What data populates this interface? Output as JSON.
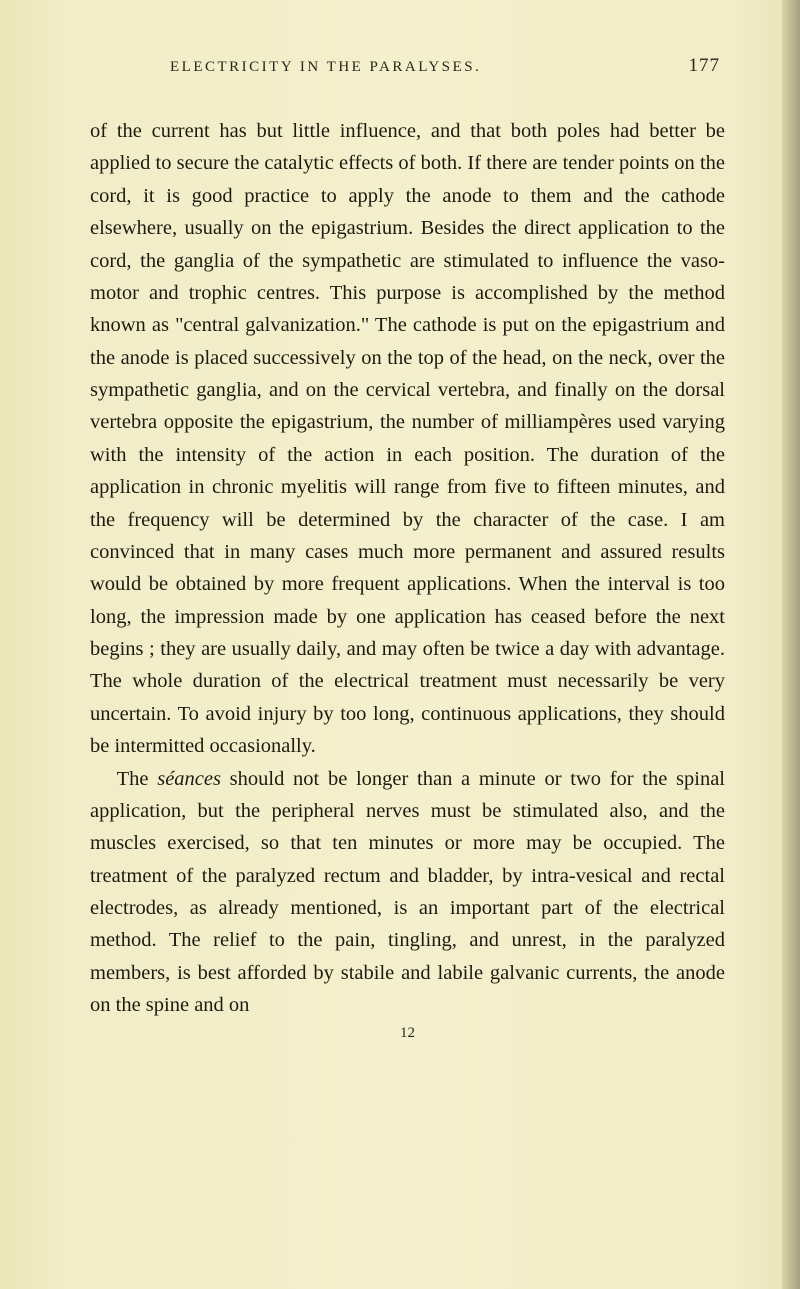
{
  "page": {
    "running_title": "ELECTRICITY IN THE PARALYSES.",
    "page_number": "177",
    "footer_number": "12",
    "background_color": "#f2edc8",
    "text_color": "#1f1a10",
    "header_color": "#2a2418",
    "body_fontsize": 20.5,
    "header_fontsize": 15,
    "pagenum_fontsize": 19,
    "line_height": 1.58,
    "font_family": "Georgia, 'Times New Roman', serif"
  },
  "paragraphs": {
    "p1": "of the current has but little influence, and that both poles had better be applied to secure the catalytic effects of both. If there are tender points on the cord, it is good practice to apply the anode to them and the cathode elsewhere, usually on the epigastrium. Besides the direct application to the cord, the ganglia of the sympathetic are stimulated to influence the vaso-motor and trophic centres. This purpose is accomplished by the method known as \"central galvanization.\" The cathode is put on the epigastrium and the anode is placed successively on the top of the head, on the neck, over the sympathetic ganglia, and on the cervical vertebra, and finally on the dorsal vertebra opposite the epigastrium, the number of milliampères used varying with the intensity of the action in each position. The duration of the application in chronic myelitis will range from five to fifteen minutes, and the frequency will be determined by the character of the case. I am convinced that in many cases much more permanent and assured results would be obtained by more frequent applications. When the interval is too long, the impression made by one application has ceased before the next begins ; they are usually daily, and may often be twice a day with advantage. The whole duration of the electrical treatment must necessarily be very uncertain. To avoid injury by too long, continuous applications, they should be intermitted occasionally.",
    "p2_pre": "The ",
    "p2_italic": "séances",
    "p2_post": " should not be longer than a minute or two for the spinal application, but the peripheral nerves must be stimulated also, and the muscles exercised, so that ten minutes or more may be occupied. The treatment of the paralyzed rectum and bladder, by intra-vesical and rectal electrodes, as already mentioned, is an important part of the electrical method. The relief to the pain, tingling, and unrest, in the paralyzed members, is best afforded by stabile and labile galvanic currents, the anode on the spine and on"
  }
}
